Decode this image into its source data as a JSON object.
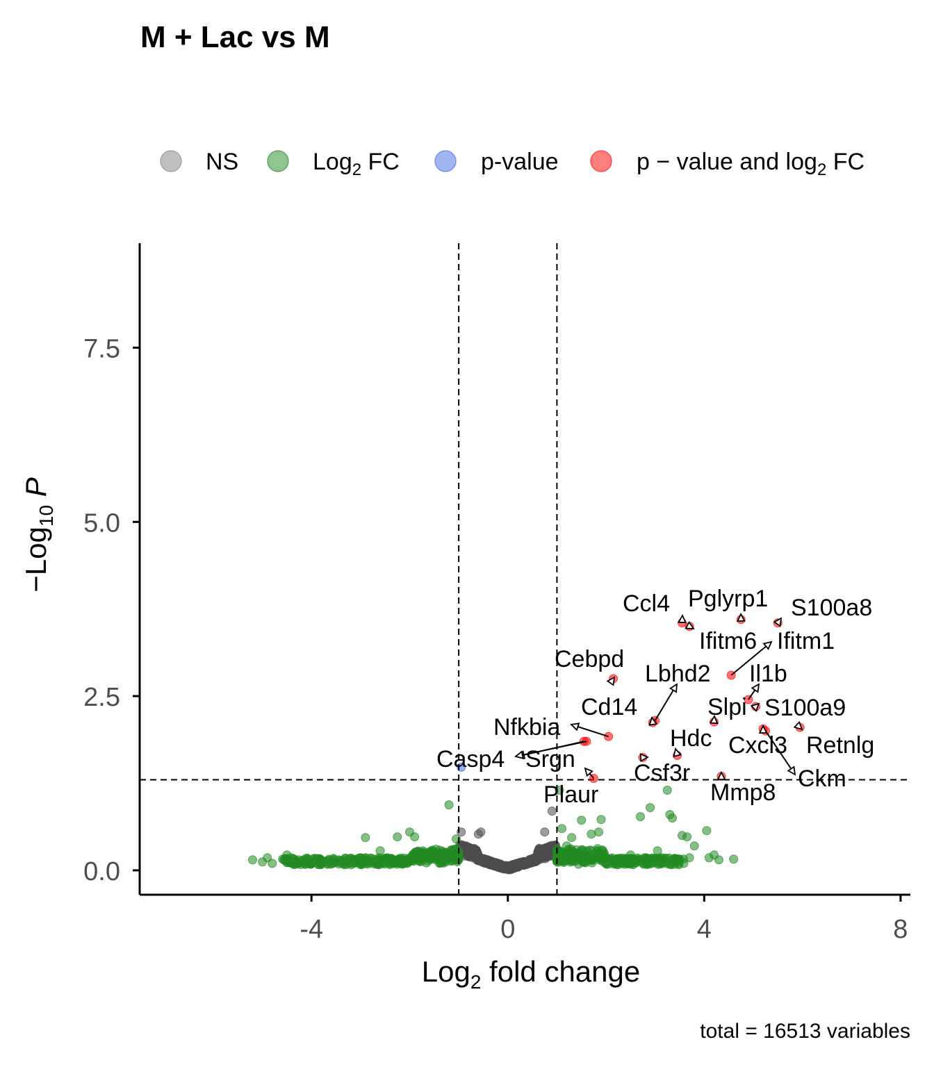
{
  "chart_data": {
    "type": "scatter",
    "title": "M + Lac vs M",
    "xlabel": "Log2 fold change",
    "ylabel": "−Log10 P",
    "xlim": [
      -7.5,
      8.2
    ],
    "ylim": [
      -0.35,
      9.0
    ],
    "x_ticks": [
      -4,
      0,
      4,
      8
    ],
    "x_tick_labels": [
      "-4",
      "0",
      "4",
      "8"
    ],
    "y_ticks": [
      0.0,
      2.5,
      5.0,
      7.5
    ],
    "y_tick_labels": [
      "0.0",
      "2.5",
      "5.0",
      "7.5"
    ],
    "fc_cutoff": 1,
    "p_cutoff_neglog10": 1.3,
    "grid": false,
    "legend_position": "top",
    "legend": [
      {
        "key": "NS",
        "label_main": "NS",
        "label_sub": "",
        "label_tail": "",
        "color": "#808080"
      },
      {
        "key": "FC",
        "label_main": "Log",
        "label_sub": "2",
        "label_tail": " FC",
        "color": "#228b22"
      },
      {
        "key": "P",
        "label_main": "p-value",
        "label_sub": "",
        "label_tail": "",
        "color": "#4169e1"
      },
      {
        "key": "PFC",
        "label_main": "p − value and log",
        "label_sub": "2",
        "label_tail": " FC",
        "color": "#ff0000"
      }
    ],
    "caption": "total = 16513 variables",
    "significant_genes": [
      {
        "gene": "S100a8",
        "x": 5.5,
        "y": 3.55
      },
      {
        "gene": "Pglyrp1",
        "x": 4.75,
        "y": 3.6
      },
      {
        "gene": "Ccl4",
        "x": 3.55,
        "y": 3.55
      },
      {
        "gene": "Ifitm6",
        "x": 3.7,
        "y": 3.5
      },
      {
        "gene": "Ifitm1",
        "x": 4.55,
        "y": 2.8
      },
      {
        "gene": "Cebpd",
        "x": 2.15,
        "y": 2.75
      },
      {
        "gene": "Il1b",
        "x": 4.9,
        "y": 2.45
      },
      {
        "gene": "S100a9",
        "x": 5.05,
        "y": 2.35
      },
      {
        "gene": "Lbhd2",
        "x": 3.0,
        "y": 2.15
      },
      {
        "gene": "Cd14",
        "x": 2.95,
        "y": 2.12
      },
      {
        "gene": "Slpi",
        "x": 4.2,
        "y": 2.13
      },
      {
        "gene": "Nfkbia",
        "x": 2.05,
        "y": 1.92
      },
      {
        "gene": "Retnlg",
        "x": 5.95,
        "y": 2.05
      },
      {
        "gene": "Cxcl3",
        "x": 5.2,
        "y": 2.03
      },
      {
        "gene": "Ckm",
        "x": 5.25,
        "y": 2.0
      },
      {
        "gene": "Srgn",
        "x": 1.55,
        "y": 1.85
      },
      {
        "gene": "Casp4",
        "x": 1.6,
        "y": 1.85
      },
      {
        "gene": "Hdc",
        "x": 3.45,
        "y": 1.65
      },
      {
        "gene": "Csf3r",
        "x": 2.75,
        "y": 1.62
      },
      {
        "gene": "Plaur",
        "x": 1.75,
        "y": 1.32
      },
      {
        "gene": "Mmp8",
        "x": 4.35,
        "y": 1.35
      }
    ],
    "pvalue_only_points": [
      {
        "x": -0.95,
        "y": 1.48
      }
    ],
    "fc_only_sparse_points": [
      {
        "x": -5.2,
        "y": 0.15
      },
      {
        "x": -5.0,
        "y": 0.12
      },
      {
        "x": -4.9,
        "y": 0.18
      },
      {
        "x": -4.8,
        "y": 0.1
      },
      {
        "x": -4.5,
        "y": 0.22
      },
      {
        "x": -4.3,
        "y": 0.1
      },
      {
        "x": -3.9,
        "y": 0.15
      },
      {
        "x": -3.5,
        "y": 0.12
      },
      {
        "x": -3.0,
        "y": 0.18
      },
      {
        "x": -2.9,
        "y": 0.47
      },
      {
        "x": -2.6,
        "y": 0.28
      },
      {
        "x": -2.25,
        "y": 0.48
      },
      {
        "x": -2.0,
        "y": 0.55
      },
      {
        "x": -1.9,
        "y": 0.48
      },
      {
        "x": -1.75,
        "y": 0.25
      },
      {
        "x": -1.2,
        "y": 0.94
      },
      {
        "x": -1.1,
        "y": 0.3
      },
      {
        "x": -1.05,
        "y": 0.45
      },
      {
        "x": 1.05,
        "y": 1.15
      },
      {
        "x": 1.1,
        "y": 0.6
      },
      {
        "x": 1.2,
        "y": 0.35
      },
      {
        "x": 1.3,
        "y": 0.47
      },
      {
        "x": 1.5,
        "y": 0.72
      },
      {
        "x": 1.7,
        "y": 0.52
      },
      {
        "x": 1.85,
        "y": 0.55
      },
      {
        "x": 1.9,
        "y": 0.73
      },
      {
        "x": 2.5,
        "y": 0.22
      },
      {
        "x": 2.7,
        "y": 0.77
      },
      {
        "x": 2.9,
        "y": 0.9
      },
      {
        "x": 3.05,
        "y": 0.28
      },
      {
        "x": 3.25,
        "y": 1.15
      },
      {
        "x": 3.3,
        "y": 0.8
      },
      {
        "x": 3.35,
        "y": 0.75
      },
      {
        "x": 3.55,
        "y": 0.5
      },
      {
        "x": 3.65,
        "y": 0.48
      },
      {
        "x": 3.7,
        "y": 0.18
      },
      {
        "x": 3.8,
        "y": 0.35
      },
      {
        "x": 4.05,
        "y": 0.57
      },
      {
        "x": 4.1,
        "y": 0.18
      },
      {
        "x": 4.2,
        "y": 0.22
      },
      {
        "x": 4.3,
        "y": 0.15
      },
      {
        "x": 4.6,
        "y": 0.16
      }
    ],
    "ns_sparse_points": [
      {
        "x": -0.95,
        "y": 0.55
      },
      {
        "x": -0.6,
        "y": 0.52
      },
      {
        "x": -0.55,
        "y": 0.55
      },
      {
        "x": 0.75,
        "y": 0.55
      },
      {
        "x": 0.9,
        "y": 0.85
      }
    ],
    "significance_colors": {
      "NS": "#4d4d4d",
      "FC": "#228b22",
      "P": "#4169e1",
      "PFC": "#ff0000"
    }
  }
}
